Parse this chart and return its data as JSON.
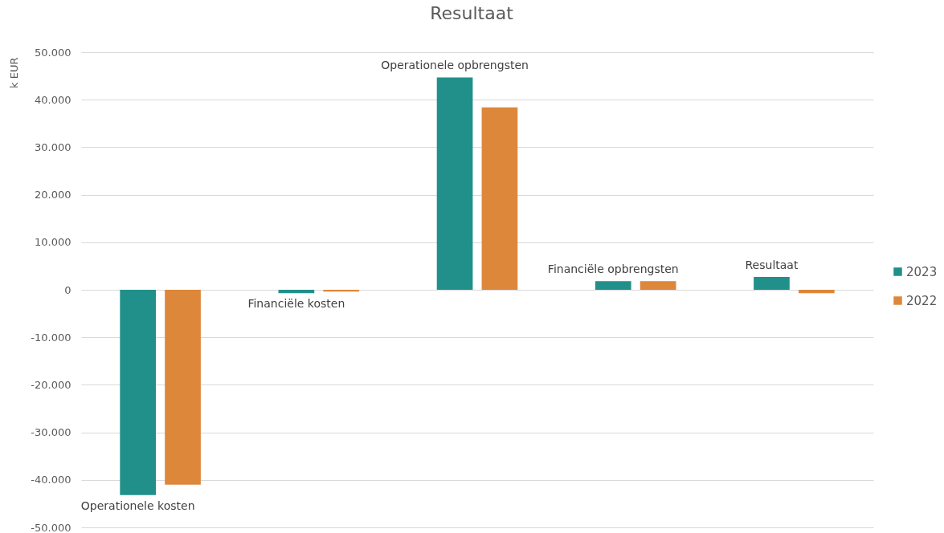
{
  "chart_data": {
    "type": "bar",
    "title": "Resultaat",
    "ylabel": "k EUR",
    "categories": [
      "Operationele kosten",
      "Financiële kosten",
      "Operationele opbrengsten",
      "Financiële opbrengsten",
      "Resultaat"
    ],
    "series": [
      {
        "name": "2023",
        "color": "#21908a",
        "values": [
          -43200,
          -700,
          44700,
          1800,
          2700
        ]
      },
      {
        "name": "2022",
        "color": "#dd873a",
        "values": [
          -41000,
          -400,
          38400,
          1800,
          -700
        ]
      }
    ],
    "ylim": [
      -50000,
      50000
    ],
    "yticks": [
      {
        "value": -50000,
        "label": "-50.000"
      },
      {
        "value": -40000,
        "label": "-40.000"
      },
      {
        "value": -30000,
        "label": "-30.000"
      },
      {
        "value": -20000,
        "label": "-20.000"
      },
      {
        "value": -10000,
        "label": "-10.000"
      },
      0,
      {
        "value": 10000,
        "label": "10.000"
      },
      {
        "value": 20000,
        "label": "20.000"
      },
      {
        "value": 30000,
        "label": "30.000"
      },
      {
        "value": 40000,
        "label": "40.000"
      },
      {
        "value": 50000,
        "label": "50.000"
      }
    ],
    "grid": "y",
    "legend": "right",
    "tick_labels": "y"
  }
}
